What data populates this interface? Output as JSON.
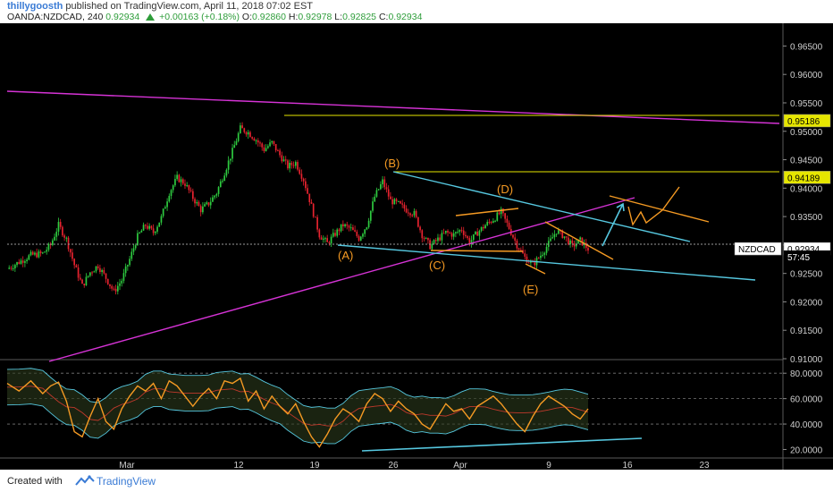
{
  "header": {
    "author": "thillygoosth",
    "published": "published on TradingView.com, April 11, 2018 07:02 EST",
    "symbol": "OANDA:NZDCAD, 240",
    "last": "0.92934",
    "change": "+0.00163 (+0.18%)",
    "o_label": "O:",
    "o": "0.92860",
    "h_label": "H:",
    "h": "0.92978",
    "l_label": "L:",
    "l": "0.92825",
    "c_label": "C:",
    "c": "0.92934"
  },
  "footer": {
    "created_with": "Created with",
    "brand": "TradingView"
  },
  "colors": {
    "background": "#000000",
    "up": "#2ecc40",
    "down": "#e8232f",
    "magenta": "#d633d6",
    "cyan": "#56c8e0",
    "orange": "#f59a23",
    "yellow": "#e6e600"
  },
  "chart_data": [
    {
      "type": "candlestick",
      "symbol": "NZDCAD",
      "ylim": [
        0.91,
        0.969
      ],
      "y_ticks": [
        "0.96500",
        "0.96000",
        "0.95500",
        "0.95000",
        "0.94500",
        "0.94000",
        "0.93500",
        "0.93000",
        "0.92500",
        "0.92000",
        "0.91500",
        "0.91000"
      ],
      "x_ticks": [
        "Mar",
        "12",
        "19",
        "26",
        "Apr",
        "9",
        "16",
        "23"
      ],
      "price_labels": [
        {
          "text": "0.95186",
          "value": 0.95186,
          "style": "yellow"
        },
        {
          "text": "0.94189",
          "value": 0.94189,
          "style": "yellow"
        },
        {
          "text": "NZDCAD",
          "value": 0.92934,
          "style": "symbol"
        },
        {
          "text": "0.92934",
          "value": 0.92934,
          "style": "current"
        },
        {
          "text": "57:45",
          "value": 0.9279,
          "style": "timer"
        }
      ],
      "wave_labels": [
        "(A)",
        "(B)",
        "(C)",
        "(D)",
        "(E)"
      ],
      "close_path": [
        [
          0,
          0.9258
        ],
        [
          6,
          0.927
        ],
        [
          12,
          0.9282
        ],
        [
          18,
          0.9285
        ],
        [
          22,
          0.93
        ],
        [
          26,
          0.9335
        ],
        [
          30,
          0.931
        ],
        [
          34,
          0.9265
        ],
        [
          38,
          0.9228
        ],
        [
          42,
          0.9252
        ],
        [
          46,
          0.9264
        ],
        [
          50,
          0.9242
        ],
        [
          54,
          0.9218
        ],
        [
          58,
          0.9238
        ],
        [
          62,
          0.9275
        ],
        [
          66,
          0.9315
        ],
        [
          70,
          0.9335
        ],
        [
          74,
          0.9322
        ],
        [
          78,
          0.9348
        ],
        [
          82,
          0.9392
        ],
        [
          86,
          0.9418
        ],
        [
          90,
          0.9408
        ],
        [
          94,
          0.9383
        ],
        [
          98,
          0.9362
        ],
        [
          102,
          0.9373
        ],
        [
          106,
          0.9392
        ],
        [
          110,
          0.9428
        ],
        [
          114,
          0.9465
        ],
        [
          118,
          0.9505
        ],
        [
          122,
          0.9498
        ],
        [
          126,
          0.9485
        ],
        [
          130,
          0.9468
        ],
        [
          134,
          0.948
        ],
        [
          138,
          0.9458
        ],
        [
          142,
          0.9438
        ],
        [
          146,
          0.9445
        ],
        [
          150,
          0.9415
        ],
        [
          154,
          0.9368
        ],
        [
          158,
          0.9318
        ],
        [
          162,
          0.9303
        ],
        [
          166,
          0.932
        ],
        [
          170,
          0.9335
        ],
        [
          174,
          0.9328
        ],
        [
          178,
          0.9312
        ],
        [
          182,
          0.9335
        ],
        [
          186,
          0.9385
        ],
        [
          190,
          0.9412
        ],
        [
          194,
          0.9378
        ],
        [
          198,
          0.9372
        ],
        [
          202,
          0.9362
        ],
        [
          206,
          0.9355
        ],
        [
          210,
          0.9318
        ],
        [
          214,
          0.9298
        ],
        [
          218,
          0.931
        ],
        [
          222,
          0.9322
        ],
        [
          226,
          0.9318
        ],
        [
          230,
          0.9328
        ],
        [
          234,
          0.9305
        ],
        [
          238,
          0.9322
        ],
        [
          242,
          0.9335
        ],
        [
          246,
          0.9345
        ],
        [
          250,
          0.9358
        ],
        [
          254,
          0.933
        ],
        [
          258,
          0.93
        ],
        [
          262,
          0.9278
        ],
        [
          266,
          0.9265
        ],
        [
          270,
          0.9282
        ],
        [
          274,
          0.9302
        ],
        [
          278,
          0.9325
        ],
        [
          282,
          0.9315
        ],
        [
          286,
          0.9298
        ],
        [
          290,
          0.9308
        ],
        [
          294,
          0.9293
        ]
      ]
    },
    {
      "type": "line",
      "name": "oscillator",
      "ylim": [
        14.0,
        90.0
      ],
      "y_ticks": [
        "80.0000",
        "60.0000",
        "40.0000",
        "20.0000"
      ],
      "series": [
        {
          "values": [
            [
              0,
              72
            ],
            [
              6,
              66
            ],
            [
              12,
              74
            ],
            [
              18,
              64
            ],
            [
              22,
              70
            ],
            [
              26,
              73
            ],
            [
              30,
              58
            ],
            [
              34,
              34
            ],
            [
              38,
              30
            ],
            [
              42,
              46
            ],
            [
              46,
              60
            ],
            [
              50,
              42
            ],
            [
              54,
              36
            ],
            [
              58,
              52
            ],
            [
              62,
              62
            ],
            [
              66,
              70
            ],
            [
              70,
              66
            ],
            [
              74,
              72
            ],
            [
              78,
              60
            ],
            [
              82,
              74
            ],
            [
              86,
              70
            ],
            [
              90,
              62
            ],
            [
              94,
              54
            ],
            [
              98,
              62
            ],
            [
              102,
              68
            ],
            [
              106,
              60
            ],
            [
              110,
              74
            ],
            [
              114,
              72
            ],
            [
              118,
              76
            ],
            [
              122,
              58
            ],
            [
              126,
              66
            ],
            [
              130,
              52
            ],
            [
              134,
              62
            ],
            [
              138,
              54
            ],
            [
              142,
              48
            ],
            [
              146,
              56
            ],
            [
              150,
              42
            ],
            [
              154,
              30
            ],
            [
              158,
              22
            ],
            [
              162,
              32
            ],
            [
              166,
              44
            ],
            [
              170,
              52
            ],
            [
              174,
              48
            ],
            [
              178,
              42
            ],
            [
              182,
              56
            ],
            [
              186,
              64
            ],
            [
              190,
              60
            ],
            [
              194,
              50
            ],
            [
              198,
              58
            ],
            [
              202,
              52
            ],
            [
              206,
              48
            ],
            [
              210,
              40
            ],
            [
              214,
              36
            ],
            [
              218,
              46
            ],
            [
              222,
              56
            ],
            [
              226,
              50
            ],
            [
              230,
              52
            ],
            [
              234,
              44
            ],
            [
              238,
              54
            ],
            [
              242,
              58
            ],
            [
              246,
              62
            ],
            [
              250,
              56
            ],
            [
              254,
              48
            ],
            [
              258,
              40
            ],
            [
              262,
              34
            ],
            [
              266,
              46
            ],
            [
              270,
              56
            ],
            [
              274,
              62
            ],
            [
              278,
              58
            ],
            [
              282,
              54
            ],
            [
              286,
              48
            ],
            [
              290,
              44
            ],
            [
              294,
              52
            ]
          ]
        }
      ]
    }
  ]
}
